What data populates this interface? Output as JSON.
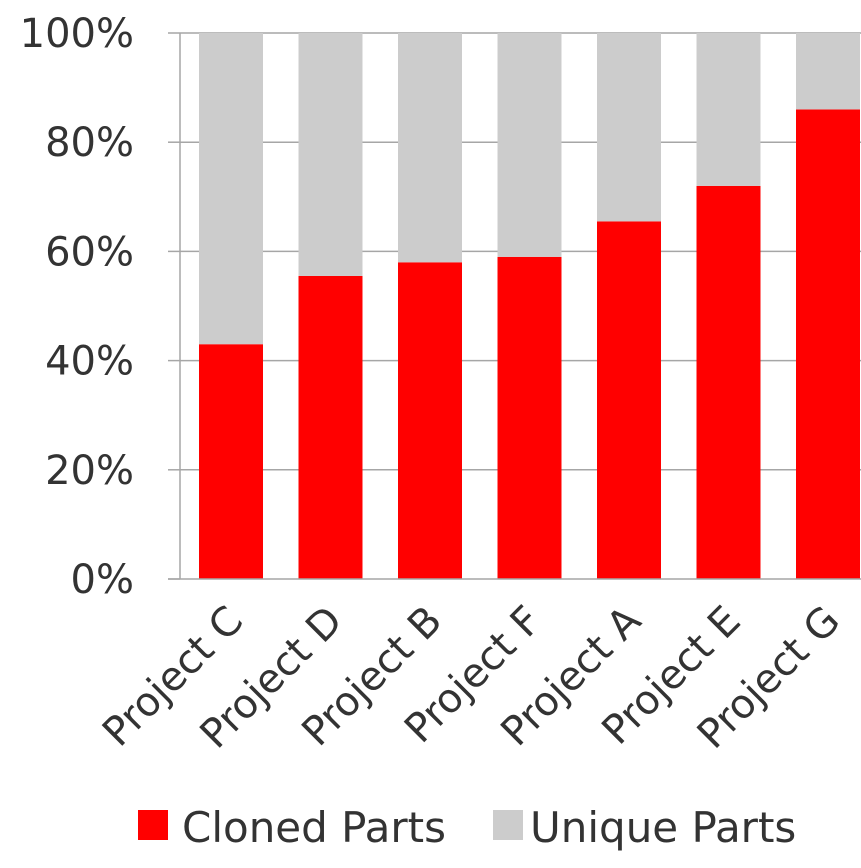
{
  "chart_data": {
    "type": "bar",
    "stacked": true,
    "categories": [
      "Project C",
      "Project D",
      "Project B",
      "Project F",
      "Project A",
      "Project E",
      "Project G"
    ],
    "series": [
      {
        "name": "Cloned Parts",
        "color": "#ff0000",
        "values": [
          43,
          55.5,
          58,
          59,
          65.5,
          72,
          86
        ]
      },
      {
        "name": "Unique Parts",
        "color": "#cccccc",
        "values": [
          57,
          44.5,
          42,
          41,
          34.5,
          28,
          14
        ]
      }
    ],
    "ylim": [
      0,
      100
    ],
    "yticks": [
      "0%",
      "20%",
      "40%",
      "60%",
      "80%",
      "100%"
    ],
    "grid": true,
    "legend_position": "bottom"
  }
}
